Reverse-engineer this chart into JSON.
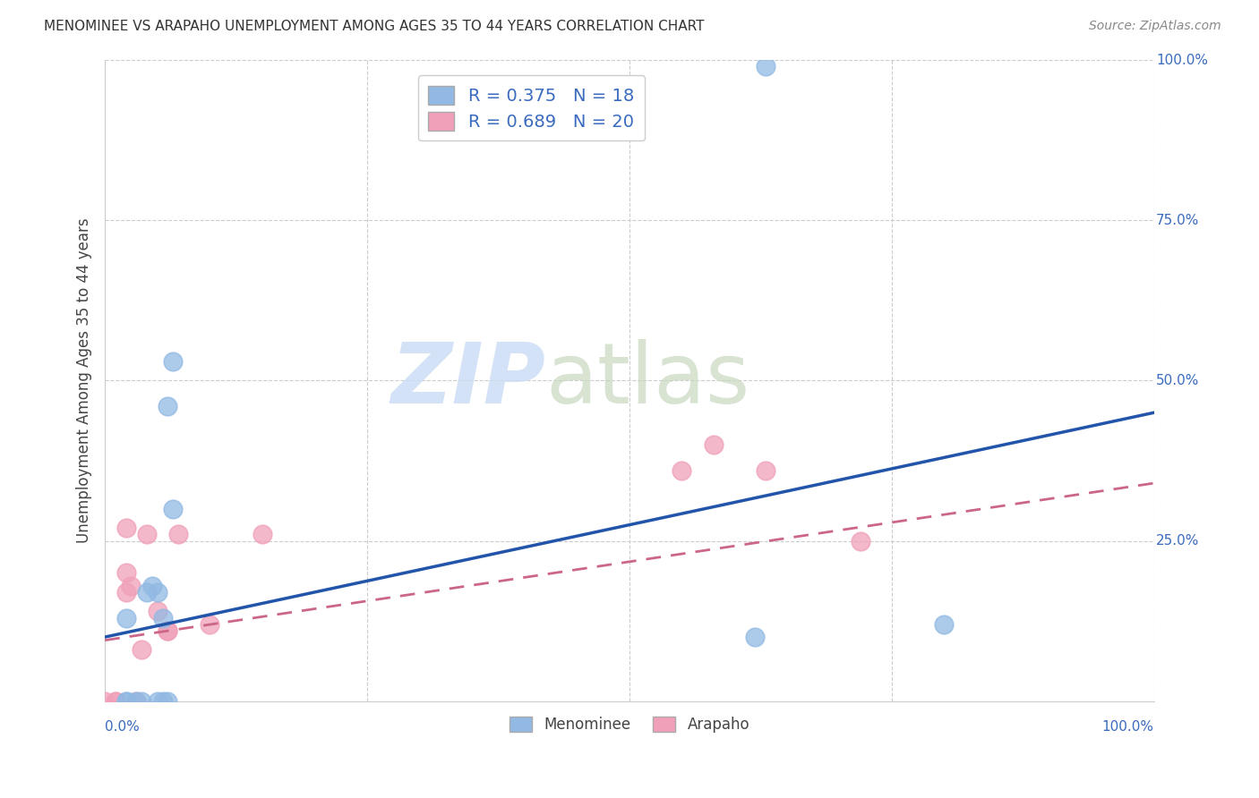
{
  "title": "MENOMINEE VS ARAPAHO UNEMPLOYMENT AMONG AGES 35 TO 44 YEARS CORRELATION CHART",
  "source": "Source: ZipAtlas.com",
  "ylabel": "Unemployment Among Ages 35 to 44 years",
  "xlim": [
    0,
    1.0
  ],
  "ylim": [
    0,
    1.0
  ],
  "xticks": [
    0.0,
    1.0
  ],
  "yticks": [
    0.0,
    0.25,
    0.5,
    0.75,
    1.0
  ],
  "xticklabels_bottom": [
    "0.0%",
    "100.0%"
  ],
  "yticklabels_right": [
    "0.0%",
    "25.0%",
    "50.0%",
    "75.0%",
    "100.0%"
  ],
  "menominee_color": "#91b9e3",
  "arapaho_color": "#f0a0b8",
  "menominee_line_color": "#2255aa",
  "arapaho_line_color": "#cc6688",
  "legend_R_menominee": "R = 0.375",
  "legend_N_menominee": "N = 18",
  "legend_R_arapaho": "R = 0.689",
  "legend_N_arapaho": "N = 20",
  "watermark_zip": "ZIP",
  "watermark_atlas": "atlas",
  "background_color": "#ffffff",
  "grid_color": "#cccccc",
  "menominee_x": [
    0.02,
    0.02,
    0.03,
    0.035,
    0.04,
    0.045,
    0.05,
    0.05,
    0.055,
    0.055,
    0.06,
    0.06,
    0.065,
    0.065,
    0.02,
    0.62,
    0.8,
    0.63
  ],
  "menominee_y": [
    0.0,
    0.0,
    0.0,
    0.0,
    0.17,
    0.18,
    0.17,
    0.0,
    0.0,
    0.13,
    0.0,
    0.46,
    0.53,
    0.3,
    0.13,
    0.1,
    0.12,
    0.99
  ],
  "arapaho_x": [
    0.0,
    0.01,
    0.01,
    0.02,
    0.025,
    0.03,
    0.035,
    0.04,
    0.05,
    0.06,
    0.06,
    0.07,
    0.1,
    0.15,
    0.55,
    0.58,
    0.63,
    0.72,
    0.02,
    0.02
  ],
  "arapaho_y": [
    0.0,
    0.0,
    0.0,
    0.17,
    0.18,
    0.0,
    0.08,
    0.26,
    0.14,
    0.11,
    0.11,
    0.26,
    0.12,
    0.26,
    0.36,
    0.4,
    0.36,
    0.25,
    0.27,
    0.2
  ],
  "menominee_line_x": [
    0.0,
    1.0
  ],
  "menominee_line_y": [
    0.1,
    0.45
  ],
  "arapaho_line_x": [
    0.0,
    1.0
  ],
  "arapaho_line_y": [
    0.095,
    0.34
  ]
}
